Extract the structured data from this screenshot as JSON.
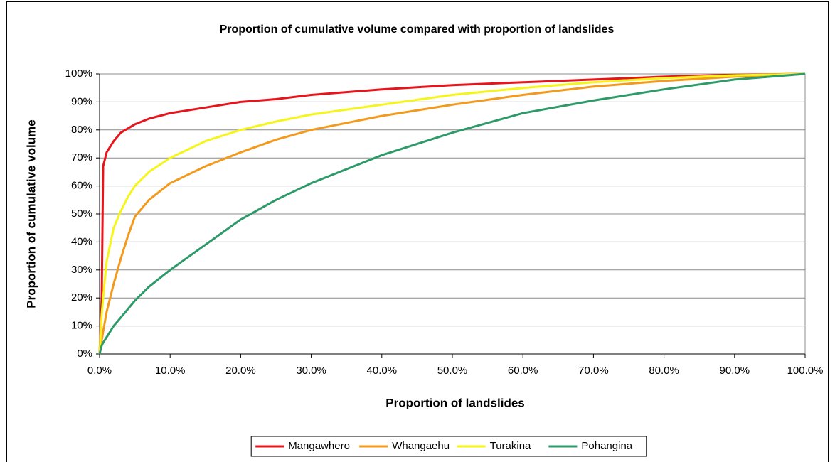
{
  "chart_data": {
    "type": "line",
    "title": "Proportion of cumulative volume compared with proportion of landslides",
    "xlabel": "Proportion of landslides",
    "ylabel": "Proportion of cumulative volume",
    "x": [
      0,
      0.3,
      0.5,
      1,
      2,
      3,
      4,
      5,
      7,
      10,
      15,
      20,
      25,
      30,
      40,
      50,
      60,
      70,
      80,
      90,
      100
    ],
    "series": [
      {
        "name": "Mangawhero",
        "color": "#e8141b",
        "values": [
          0,
          20,
          67,
          72,
          76,
          79,
          80.5,
          82,
          84,
          86,
          88,
          90,
          91,
          92.5,
          94.5,
          96,
          97,
          98,
          99,
          99.7,
          100
        ]
      },
      {
        "name": "Whangaehu",
        "color": "#f39a1c",
        "values": [
          0,
          5,
          8,
          15,
          25,
          34,
          42,
          49,
          55,
          61,
          67,
          72,
          76.5,
          80,
          85,
          89,
          92.5,
          95.5,
          97.5,
          99,
          100
        ]
      },
      {
        "name": "Turakina",
        "color": "#f6f51a",
        "values": [
          0,
          14,
          20,
          33,
          45,
          51,
          56,
          60,
          65,
          70,
          76,
          80,
          83,
          85.5,
          89,
          92.5,
          95,
          97,
          98.5,
          99.5,
          100
        ]
      },
      {
        "name": "Pohangina",
        "color": "#2e9a6a",
        "values": [
          0,
          3,
          4,
          6,
          10,
          13,
          16,
          19,
          24,
          30,
          39,
          48,
          55,
          61,
          71,
          79,
          86,
          90.5,
          94.5,
          98,
          100
        ]
      }
    ],
    "xlim": [
      0,
      100
    ],
    "xticks": [
      {
        "value": 0,
        "label": "0.0%"
      },
      {
        "value": 10,
        "label": "10.0%"
      },
      {
        "value": 20,
        "label": "20.0%"
      },
      {
        "value": 30,
        "label": "30.0%"
      },
      {
        "value": 40,
        "label": "40.0%"
      },
      {
        "value": 50,
        "label": "50.0%"
      },
      {
        "value": 60,
        "label": "60.0%"
      },
      {
        "value": 70,
        "label": "70.0%"
      },
      {
        "value": 80,
        "label": "80.0%"
      },
      {
        "value": 90,
        "label": "90.0%"
      },
      {
        "value": 100,
        "label": "100.0%"
      }
    ],
    "ylim": [
      0,
      100
    ],
    "yticks": [
      {
        "value": 0,
        "label": "0%"
      },
      {
        "value": 10,
        "label": "10%"
      },
      {
        "value": 20,
        "label": "20%"
      },
      {
        "value": 30,
        "label": "30%"
      },
      {
        "value": 40,
        "label": "40%"
      },
      {
        "value": 50,
        "label": "50%"
      },
      {
        "value": 60,
        "label": "60%"
      },
      {
        "value": 70,
        "label": "70%"
      },
      {
        "value": 80,
        "label": "80%"
      },
      {
        "value": 90,
        "label": "90%"
      },
      {
        "value": 100,
        "label": "100%"
      }
    ],
    "grid": true,
    "legend": "bottom"
  }
}
